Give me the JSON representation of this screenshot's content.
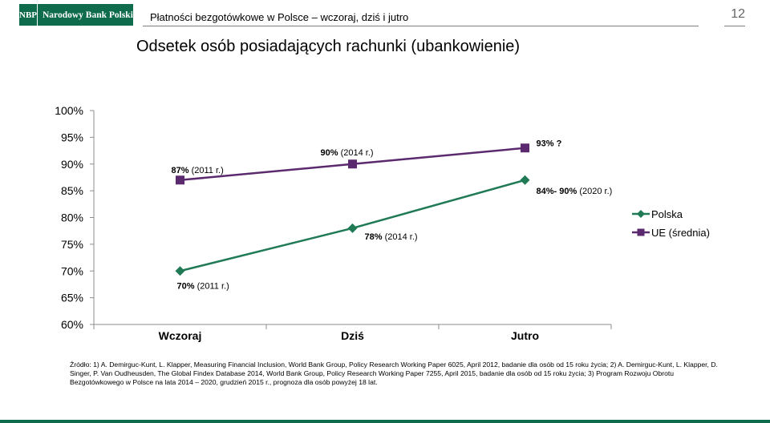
{
  "header": {
    "logo_mark": "NBP",
    "logo_name": "Narodowy Bank Polski",
    "presentation_title": "Płatności bezgotówkowe w Polsce – wczoraj, dziś i jutro",
    "page_number": "12"
  },
  "slide_title": "Odsetek osób posiadających rachunki (ubankowienie)",
  "source": {
    "label": "Źródło:",
    "text": "1) A. Demirguc-Kunt, L. Klapper, Measuring Financial Inclusion, World Bank Group, Policy Research Working Paper 6025, April 2012, badanie dla osób od 15 roku życia; 2) A. Demirguc-Kunt, L. Klapper, D. Singer, P. Van Oudheusden, The Global Findex Database 2014, World Bank Group, Policy Research Working Paper 7255, April 2015, badanie dla osób od 15 roku życia; 3) Program Rozwoju Obrotu Bezgotówkowego w Polsce na lata 2014 – 2020, grudzień 2015 r., prognoza dla osób powyżej 18 lat."
  },
  "colors": {
    "brand": "#0e6b4c",
    "polska": "#1f7a55",
    "ue": "#5b2a6e"
  },
  "chart_data": {
    "type": "line",
    "categories": [
      "Wczoraj",
      "Dziś",
      "Jutro"
    ],
    "y_ticks": [
      "60%",
      "65%",
      "70%",
      "75%",
      "80%",
      "85%",
      "90%",
      "95%",
      "100%"
    ],
    "ylim": [
      60,
      100
    ],
    "legend_position": "right",
    "grid": false,
    "series": [
      {
        "name": "Polska",
        "marker": "diamond",
        "values": [
          70,
          78,
          87
        ],
        "labels": [
          {
            "bold": "70%",
            "rest": " (2011 r.)"
          },
          {
            "bold": "78%",
            "rest": " (2014 r.)"
          },
          {
            "bold": "84%- 90%",
            "rest": " (2020 r.)"
          }
        ]
      },
      {
        "name": "UE (średnia)",
        "marker": "square",
        "values": [
          87,
          90,
          93
        ],
        "labels": [
          {
            "bold": "87%",
            "rest": " (2011 r.)"
          },
          {
            "bold": "90%",
            "rest": " (2014 r.)"
          },
          {
            "bold": "93% ?",
            "rest": ""
          }
        ]
      }
    ]
  }
}
